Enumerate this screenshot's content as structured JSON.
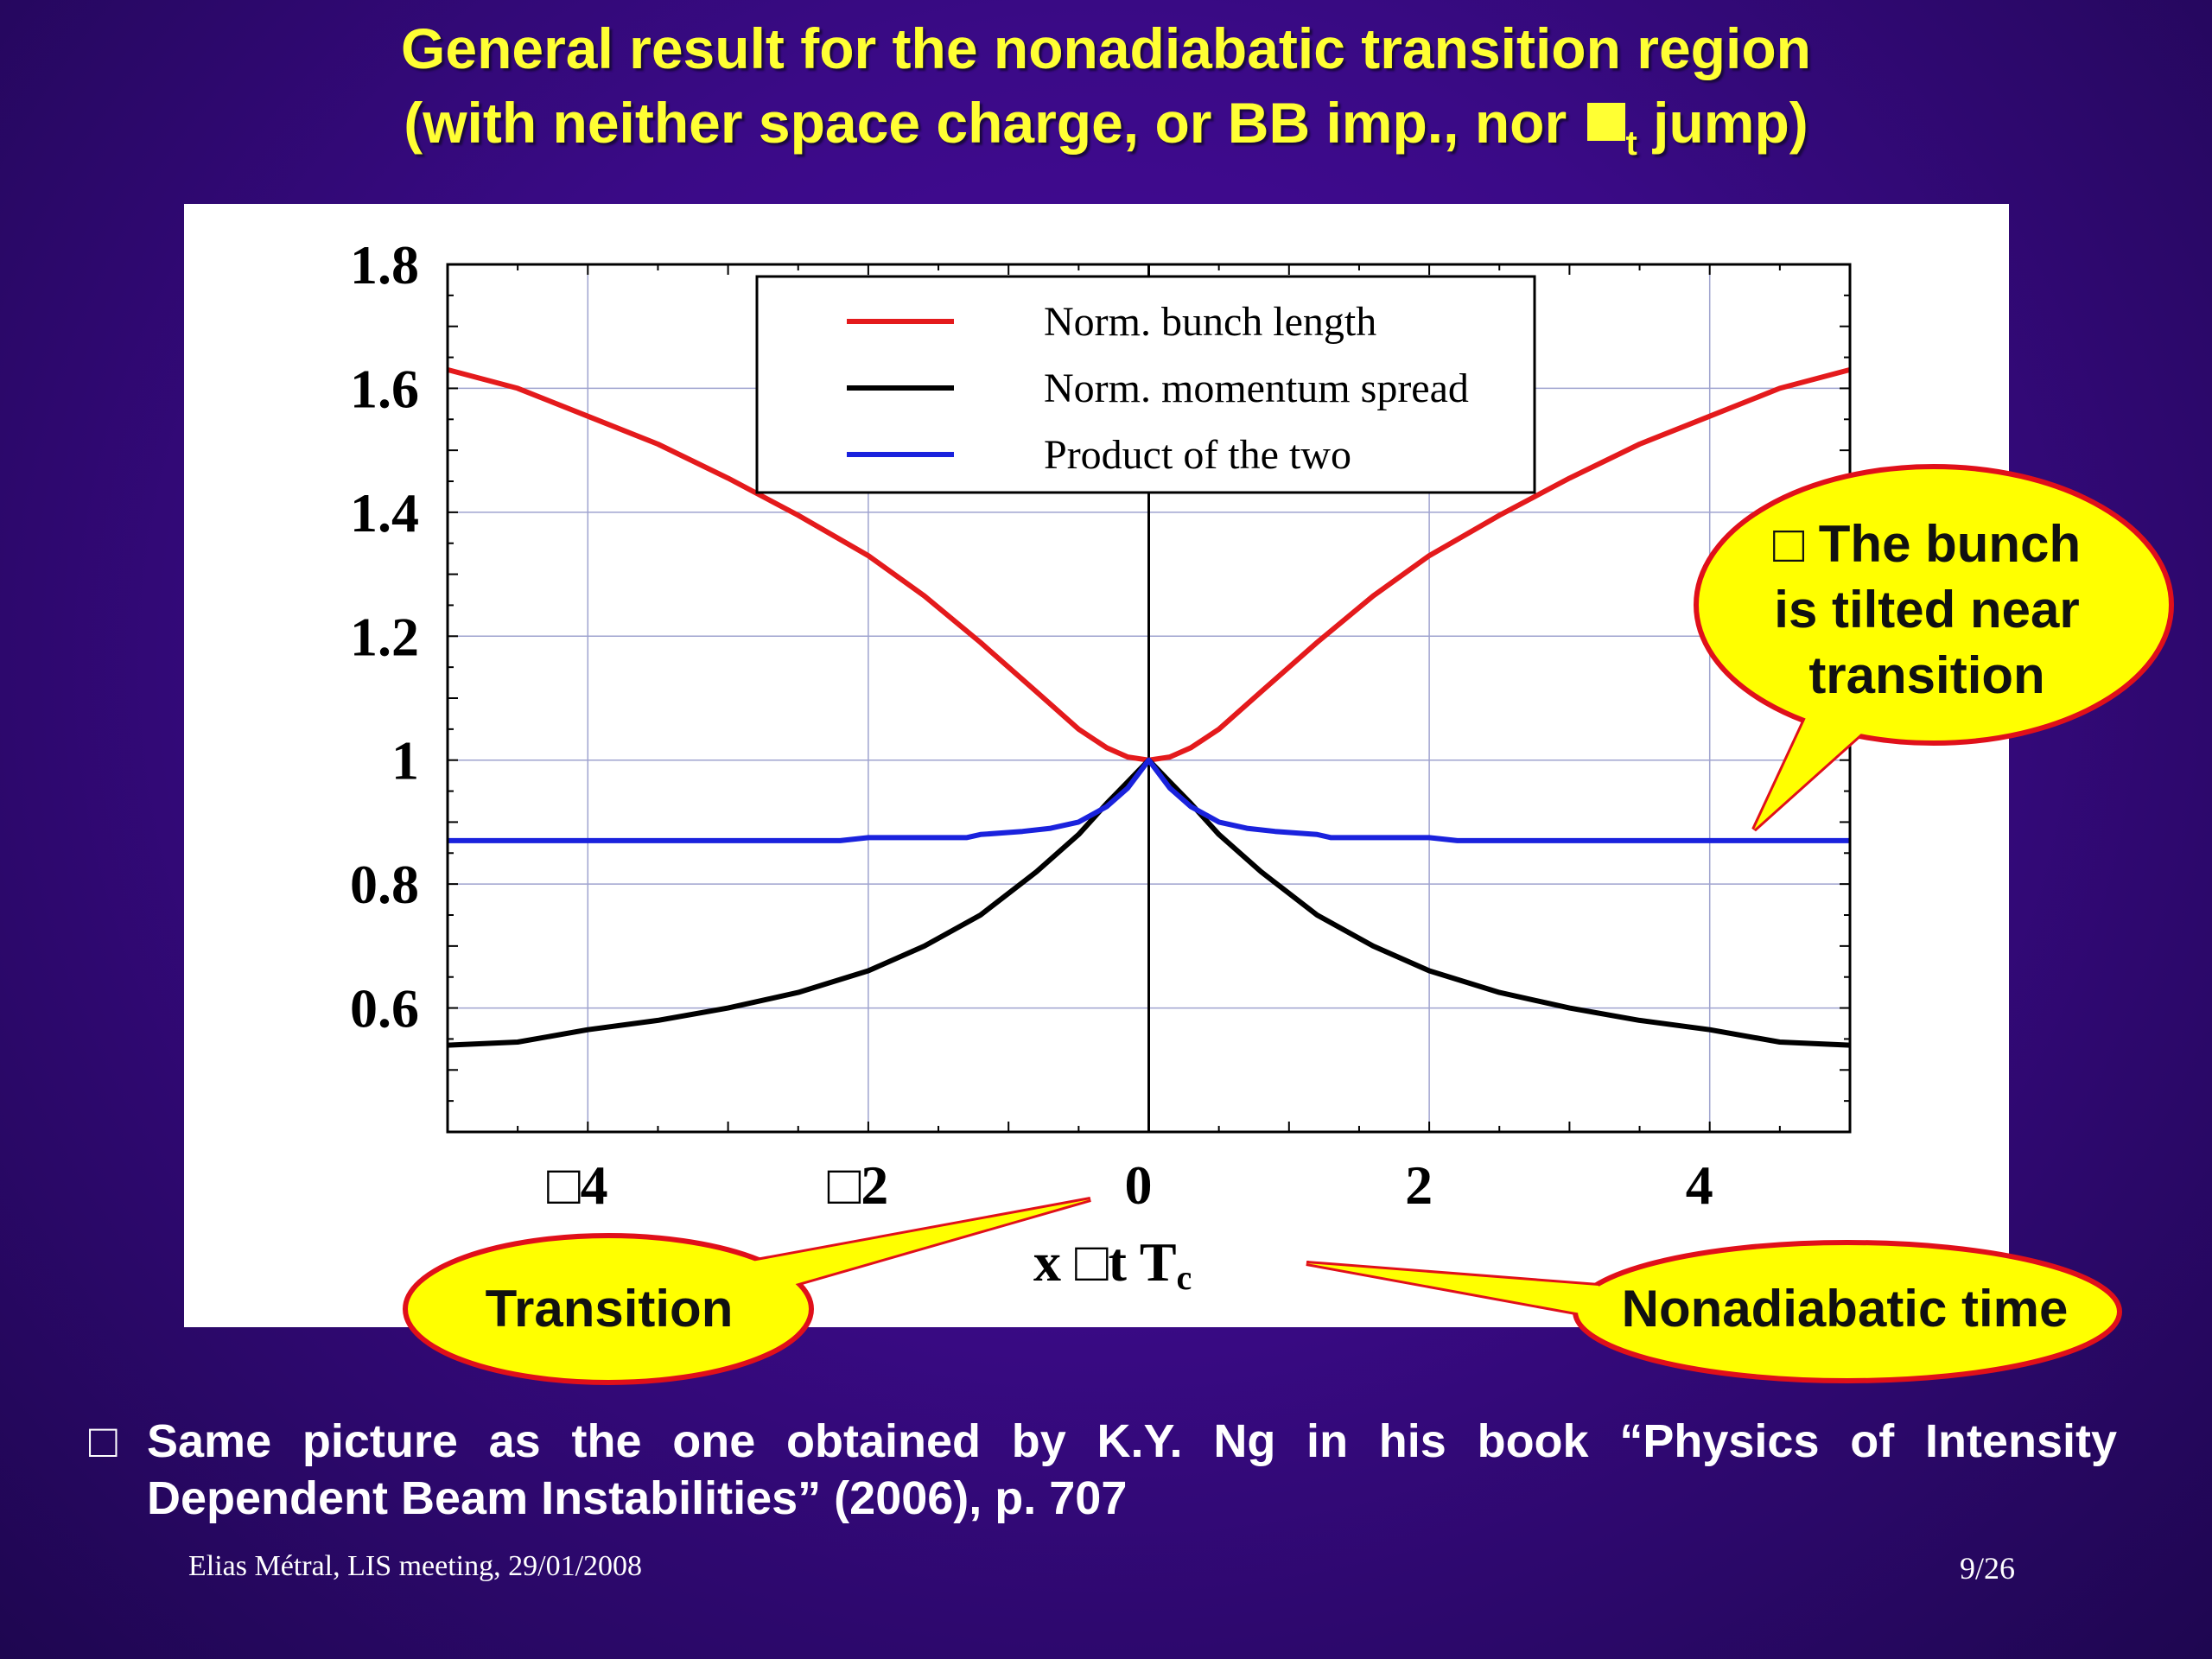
{
  "slide": {
    "title_line1": "General result for the nonadiabatic transition region",
    "title_line2_pre": "(with neither space charge, or BB imp., nor ",
    "title_line2_sub": "t",
    "title_line2_post": " jump)",
    "bubble_tilt": [
      "□ The bunch",
      "is tilted near",
      "transition"
    ],
    "bubble_transition": "Transition",
    "bubble_nonadiabatic": "Nonadiabatic time",
    "bullet_glyph": "□",
    "bullet_text": "Same picture as the one obtained by K.Y. Ng in his book “Physics of Intensity Dependent Beam Instabilities” (2006), p. 707",
    "footer_left": "Elias Métral, LIS meeting, 29/01/2008",
    "footer_right": "9/26"
  },
  "chart_data": {
    "type": "line",
    "title": "",
    "xlabel_parts": [
      "x",
      "□",
      "t",
      "T",
      "c"
    ],
    "xlim": [
      -5,
      5
    ],
    "ylim": [
      0.4,
      1.8
    ],
    "x_ticks": [
      -4,
      -2,
      0,
      2,
      4
    ],
    "x_tick_labels": [
      "□4",
      "□2",
      "0",
      "2",
      "4"
    ],
    "y_ticks": [
      0.6,
      0.8,
      1.0,
      1.2,
      1.4,
      1.6,
      1.8
    ],
    "y_tick_labels": [
      "0.6",
      "0.8",
      "1",
      "1.2",
      "1.4",
      "1.6",
      "1.8"
    ],
    "grid": true,
    "legend_position": "top-center",
    "series": [
      {
        "name": "Norm. bunch length",
        "color": "#e41a1c",
        "x": [
          -5,
          -4.5,
          -4,
          -3.5,
          -3,
          -2.5,
          -2,
          -1.6,
          -1.2,
          -0.8,
          -0.5,
          -0.3,
          -0.15,
          0,
          0.15,
          0.3,
          0.5,
          0.8,
          1.2,
          1.6,
          2,
          2.5,
          3,
          3.5,
          4,
          4.5,
          5
        ],
        "y": [
          1.63,
          1.6,
          1.555,
          1.51,
          1.455,
          1.395,
          1.33,
          1.265,
          1.19,
          1.11,
          1.05,
          1.02,
          1.005,
          1.0,
          1.005,
          1.02,
          1.05,
          1.11,
          1.19,
          1.265,
          1.33,
          1.395,
          1.455,
          1.51,
          1.555,
          1.6,
          1.63
        ]
      },
      {
        "name": "Norm. momentum spread",
        "color": "#000000",
        "x": [
          -5,
          -4.5,
          -4,
          -3.5,
          -3,
          -2.5,
          -2,
          -1.6,
          -1.2,
          -0.8,
          -0.5,
          -0.3,
          -0.15,
          0,
          0.15,
          0.3,
          0.5,
          0.8,
          1.2,
          1.6,
          2,
          2.5,
          3,
          3.5,
          4,
          4.5,
          5
        ],
        "y": [
          0.54,
          0.545,
          0.565,
          0.58,
          0.6,
          0.625,
          0.66,
          0.7,
          0.75,
          0.82,
          0.88,
          0.93,
          0.965,
          1.0,
          0.965,
          0.93,
          0.88,
          0.82,
          0.75,
          0.7,
          0.66,
          0.625,
          0.6,
          0.58,
          0.565,
          0.545,
          0.54
        ]
      },
      {
        "name": "Product of the two",
        "color": "#1a22dd",
        "x": [
          -5,
          -3,
          -2.2,
          -2,
          -1.3,
          -1.2,
          -0.9,
          -0.7,
          -0.5,
          -0.3,
          -0.15,
          0,
          0.15,
          0.3,
          0.5,
          0.7,
          0.9,
          1.2,
          1.3,
          2,
          2.2,
          3,
          5
        ],
        "y": [
          0.87,
          0.87,
          0.87,
          0.875,
          0.875,
          0.88,
          0.885,
          0.89,
          0.9,
          0.925,
          0.955,
          1.0,
          0.955,
          0.925,
          0.9,
          0.89,
          0.885,
          0.88,
          0.875,
          0.875,
          0.87,
          0.87,
          0.87
        ]
      }
    ]
  }
}
